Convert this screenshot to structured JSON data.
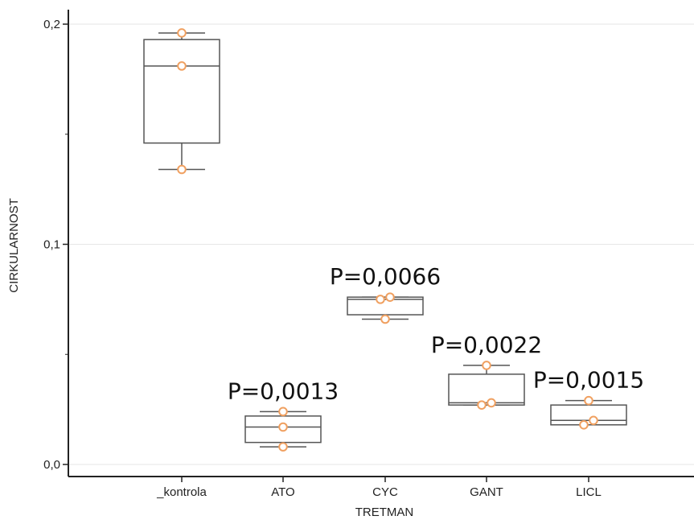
{
  "chart_data": {
    "type": "boxplot",
    "xlabel": "TRETMAN",
    "ylabel": "CIRKULARNOST",
    "ylim": [
      -0.005,
      0.205
    ],
    "yticks": [
      {
        "value": 0.0,
        "label": "0,0"
      },
      {
        "value": 0.1,
        "label": "0,1"
      },
      {
        "value": 0.2,
        "label": "0,2"
      }
    ],
    "minor_yticks": [
      0.05,
      0.15
    ],
    "grid": true,
    "box_color": "#555555",
    "point_color": "#f0a060",
    "categories": [
      "_kontrola",
      "ATO",
      "CYC",
      "GANT",
      "LICL"
    ],
    "groups": [
      {
        "category": "_kontrola",
        "whisker_low": 0.134,
        "q1": 0.146,
        "median": 0.181,
        "q3": 0.193,
        "whisker_high": 0.196,
        "points": [
          0.196,
          0.181,
          0.134
        ],
        "p_label": ""
      },
      {
        "category": "ATO",
        "whisker_low": 0.008,
        "q1": 0.01,
        "median": 0.017,
        "q3": 0.022,
        "whisker_high": 0.024,
        "points": [
          0.024,
          0.017,
          0.008
        ],
        "p_label": "P=0,0013"
      },
      {
        "category": "CYC",
        "whisker_low": 0.066,
        "q1": 0.068,
        "median": 0.075,
        "q3": 0.076,
        "whisker_high": 0.076,
        "points": [
          0.076,
          0.075,
          0.066
        ],
        "p_label": "P=0,0066"
      },
      {
        "category": "GANT",
        "whisker_low": 0.027,
        "q1": 0.027,
        "median": 0.028,
        "q3": 0.041,
        "whisker_high": 0.045,
        "points": [
          0.045,
          0.028,
          0.027
        ],
        "p_label": "P=0,0022"
      },
      {
        "category": "LICL",
        "whisker_low": 0.018,
        "q1": 0.018,
        "median": 0.02,
        "q3": 0.027,
        "whisker_high": 0.029,
        "points": [
          0.029,
          0.02,
          0.018
        ],
        "p_label": "P=0,0015"
      }
    ]
  }
}
